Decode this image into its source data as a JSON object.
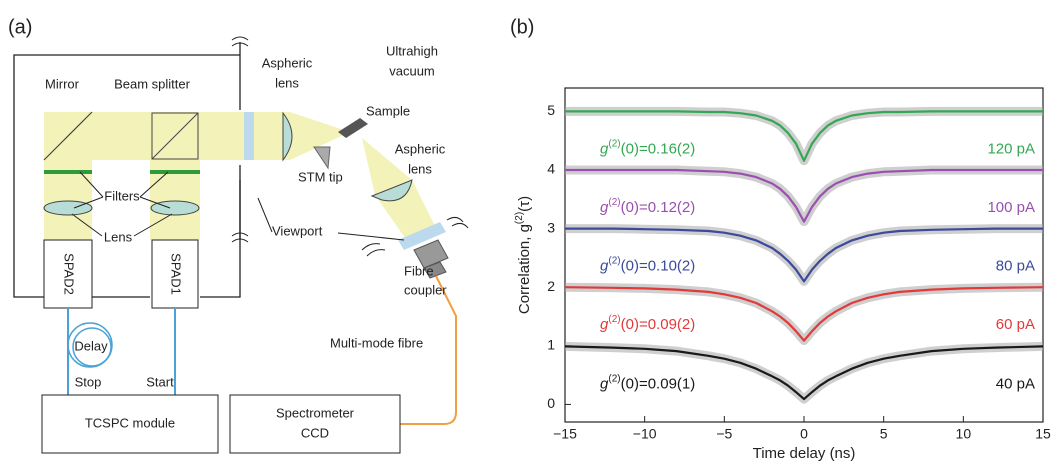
{
  "panels": {
    "a": "(a)",
    "b": "(b)"
  },
  "diagram": {
    "mirror": "Mirror",
    "beam_splitter": "Beam splitter",
    "aspheric_lens_top": [
      "Aspheric",
      "lens"
    ],
    "ultrahigh_vacuum": [
      "Ultrahigh",
      "vacuum"
    ],
    "sample": "Sample",
    "stm_tip": "STM tip",
    "aspheric_lens_bottom": [
      "Aspheric",
      "lens"
    ],
    "filters": "Filters",
    "lens": "Lens",
    "viewport": "Viewport",
    "spad2": "SPAD2",
    "spad1": "SPAD1",
    "fibre_coupler": [
      "Fibre",
      "coupler"
    ],
    "delay": "Delay",
    "stop": "Stop",
    "start": "Start",
    "multimode_fibre": "Multi-mode fibre",
    "tcspc": "TCSPC module",
    "spectrometer": [
      "Spectrometer",
      "CCD"
    ]
  },
  "chart_data": {
    "type": "line",
    "xlabel": "Time delay (ns)",
    "ylabel": {
      "text": "Correlation, g",
      "sup": "(2)",
      "rest": "(τ)"
    },
    "xlim": [
      -15,
      15
    ],
    "ylim": [
      -0.3,
      5.4
    ],
    "xticks": [
      {
        "value": -15,
        "label": "−15"
      },
      {
        "value": -10,
        "label": "−10"
      },
      {
        "value": -5,
        "label": "−5"
      },
      0,
      5,
      10,
      15
    ],
    "yticks": [
      0,
      1,
      2,
      3,
      4,
      5
    ],
    "x": [
      -15,
      -12,
      -10,
      -8,
      -6,
      -5,
      -4,
      -3,
      -2,
      -1.5,
      -1,
      -0.5,
      0,
      0.5,
      1,
      1.5,
      2,
      3,
      4,
      5,
      6,
      8,
      10,
      12,
      15
    ],
    "series": [
      {
        "name": "120 pA",
        "color": "#33a853",
        "values": [
          5.0,
          5.0,
          5.0,
          5.0,
          4.99,
          4.99,
          4.97,
          4.93,
          4.84,
          4.76,
          4.63,
          4.45,
          4.16,
          4.45,
          4.63,
          4.76,
          4.84,
          4.93,
          4.97,
          4.99,
          4.99,
          5.0,
          5.0,
          5.0,
          5.0
        ]
      },
      {
        "name": "100 pA",
        "color": "#9b4fb0",
        "values": [
          4.0,
          4.0,
          4.0,
          4.0,
          3.98,
          3.97,
          3.94,
          3.88,
          3.77,
          3.68,
          3.55,
          3.37,
          3.12,
          3.37,
          3.55,
          3.68,
          3.77,
          3.88,
          3.94,
          3.97,
          3.98,
          4.0,
          4.0,
          4.0,
          4.0
        ]
      },
      {
        "name": "80 pA",
        "color": "#3b4a9c",
        "values": [
          3.0,
          3.0,
          2.99,
          2.98,
          2.96,
          2.93,
          2.88,
          2.8,
          2.67,
          2.57,
          2.45,
          2.3,
          2.1,
          2.3,
          2.45,
          2.57,
          2.67,
          2.8,
          2.88,
          2.93,
          2.96,
          2.98,
          2.99,
          3.0,
          3.0
        ]
      },
      {
        "name": "60 pA",
        "color": "#e03a3a",
        "values": [
          2.0,
          1.99,
          1.98,
          1.96,
          1.92,
          1.88,
          1.82,
          1.73,
          1.59,
          1.5,
          1.39,
          1.25,
          1.09,
          1.25,
          1.39,
          1.5,
          1.59,
          1.73,
          1.82,
          1.88,
          1.92,
          1.96,
          1.98,
          1.99,
          2.0
        ]
      },
      {
        "name": "40 pA",
        "color": "#1a1a1a",
        "values": [
          0.99,
          0.97,
          0.95,
          0.91,
          0.83,
          0.78,
          0.71,
          0.61,
          0.48,
          0.41,
          0.32,
          0.21,
          0.09,
          0.21,
          0.32,
          0.41,
          0.48,
          0.61,
          0.71,
          0.78,
          0.83,
          0.91,
          0.95,
          0.97,
          0.99
        ]
      }
    ],
    "annotations": [
      {
        "text": "g",
        "sup": "(2)",
        "rest": "(0)=0.16(2)"
      },
      {
        "text": "g",
        "sup": "(2)",
        "rest": "(0)=0.12(2)"
      },
      {
        "text": "g",
        "sup": "(2)",
        "rest": "(0)=0.10(2)"
      },
      {
        "text": "g",
        "sup": "(2)",
        "rest": "(0)=0.09(2)"
      },
      {
        "text": "g",
        "sup": "(2)",
        "rest": "(0)=0.09(1)"
      }
    ]
  }
}
